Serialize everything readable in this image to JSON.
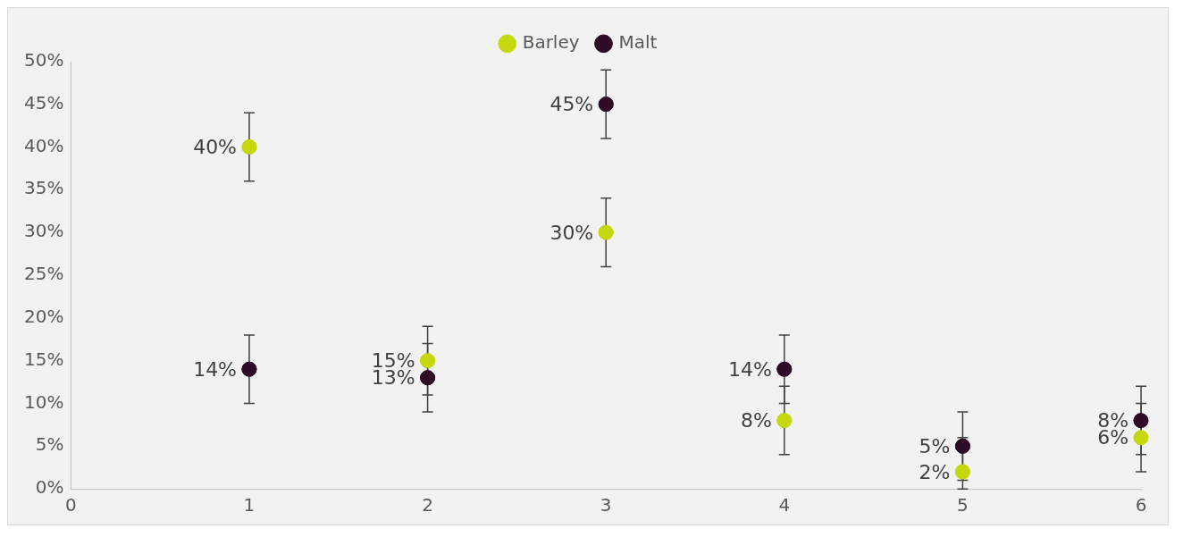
{
  "chart_data": {
    "type": "scatter",
    "x": [
      1,
      2,
      3,
      4,
      5,
      6
    ],
    "series": [
      {
        "name": "Barley",
        "color": "#c5d80d",
        "values": [
          40,
          15,
          30,
          8,
          2,
          6
        ],
        "errors": [
          4,
          4,
          4,
          4,
          [
            0,
            6
          ],
          4
        ],
        "value_labels": [
          "40%",
          "15%",
          "30%",
          "8%",
          "2%",
          "6%"
        ]
      },
      {
        "name": "Malt",
        "color": "#2e0a26",
        "values": [
          14,
          13,
          45,
          14,
          5,
          8
        ],
        "errors": [
          4,
          4,
          4,
          4,
          4,
          4
        ],
        "value_labels": [
          "14%",
          "13%",
          "45%",
          "14%",
          "5%",
          "8%"
        ]
      }
    ],
    "xlim": [
      0,
      6
    ],
    "xticks": [
      0,
      1,
      2,
      3,
      4,
      5,
      6
    ],
    "ylim": [
      0,
      50
    ],
    "yticks": [
      {
        "value": 0,
        "label": "0%"
      },
      {
        "value": 5,
        "label": "5%"
      },
      {
        "value": 10,
        "label": "10%"
      },
      {
        "value": 15,
        "label": "15%"
      },
      {
        "value": 20,
        "label": "20%"
      },
      {
        "value": 25,
        "label": "25%"
      },
      {
        "value": 30,
        "label": "30%"
      },
      {
        "value": 35,
        "label": "35%"
      },
      {
        "value": 40,
        "label": "40%"
      },
      {
        "value": 45,
        "label": "45%"
      },
      {
        "value": 50,
        "label": "50%"
      }
    ],
    "grid": false,
    "legend": "top",
    "marker": "circle"
  }
}
